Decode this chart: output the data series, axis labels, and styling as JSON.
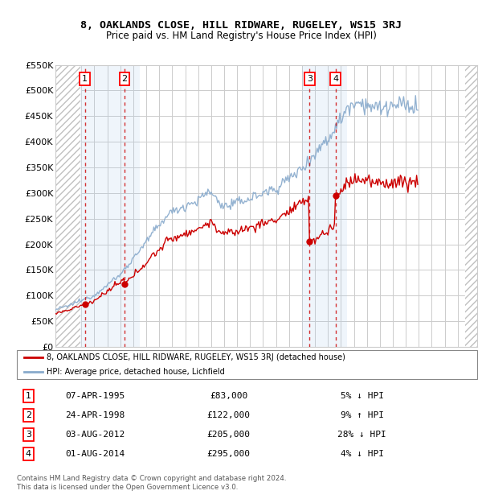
{
  "title": "8, OAKLANDS CLOSE, HILL RIDWARE, RUGELEY, WS15 3RJ",
  "subtitle": "Price paid vs. HM Land Registry's House Price Index (HPI)",
  "legend_line1": "8, OAKLANDS CLOSE, HILL RIDWARE, RUGELEY, WS15 3RJ (detached house)",
  "legend_line2": "HPI: Average price, detached house, Lichfield",
  "footer1": "Contains HM Land Registry data © Crown copyright and database right 2024.",
  "footer2": "This data is licensed under the Open Government Licence v3.0.",
  "sales": [
    {
      "num": 1,
      "date": "07-APR-1995",
      "price": 83000,
      "pct": "5%",
      "dir": "↓",
      "year": 1995.27
    },
    {
      "num": 2,
      "date": "24-APR-1998",
      "price": 122000,
      "pct": "9%",
      "dir": "↑",
      "year": 1998.32
    },
    {
      "num": 3,
      "date": "03-AUG-2012",
      "price": 205000,
      "pct": "28%",
      "dir": "↓",
      "year": 2012.59
    },
    {
      "num": 4,
      "date": "01-AUG-2014",
      "price": 295000,
      "pct": "4%",
      "dir": "↓",
      "year": 2014.59
    }
  ],
  "xmin": 1993.0,
  "xmax": 2025.5,
  "ymin": 0,
  "ymax": 550000,
  "yticks": [
    0,
    50000,
    100000,
    150000,
    200000,
    250000,
    300000,
    350000,
    400000,
    450000,
    500000,
    550000
  ],
  "ytick_labels": [
    "£0",
    "£50K",
    "£100K",
    "£150K",
    "£200K",
    "£250K",
    "£300K",
    "£350K",
    "£400K",
    "£450K",
    "£500K",
    "£550K"
  ],
  "red_color": "#cc0000",
  "blue_color": "#88aacc",
  "hatch_color": "#cccccc",
  "bg_color": "#ffffff",
  "shading_color": "#ddeeff",
  "hpi_base_monthly": [
    72000,
    73000,
    74000,
    75000,
    75500,
    76000,
    76500,
    77000,
    77500,
    78000,
    78500,
    79000,
    80000,
    81000,
    82000,
    83000,
    84000,
    85000,
    86000,
    87000,
    87500,
    88000,
    88500,
    89000,
    90000,
    91000,
    92000,
    93000,
    94000,
    95000,
    96000,
    97000,
    97500,
    98000,
    98500,
    99000,
    100000,
    102000,
    104000,
    106000,
    108000,
    110000,
    112000,
    114000,
    115000,
    116000,
    117000,
    118000,
    120000,
    122000,
    124000,
    126000,
    128000,
    130000,
    132000,
    134000,
    135000,
    136000,
    137000,
    138000,
    140000,
    143000,
    146000,
    149000,
    152000,
    155000,
    158000,
    161000,
    163000,
    165000,
    167000,
    169000,
    172000,
    175000,
    178000,
    181000,
    184000,
    187000,
    190000,
    193000,
    195000,
    197000,
    199000,
    201000,
    204000,
    207000,
    210000,
    213000,
    216000,
    219000,
    222000,
    225000,
    227000,
    229000,
    231000,
    233000,
    236000,
    239000,
    242000,
    245000,
    248000,
    251000,
    254000,
    257000,
    259000,
    260000,
    261000,
    262000,
    263000,
    264000,
    265000,
    266000,
    267000,
    268000,
    269000,
    270000,
    271000,
    272000,
    273000,
    274000,
    275000,
    276000,
    277000,
    278000,
    279000,
    280000,
    281000,
    282000,
    282500,
    283000,
    283500,
    284000,
    285000,
    287000,
    289000,
    291000,
    293000,
    295000,
    297000,
    299000,
    300000,
    300500,
    300800,
    300900,
    300800,
    299000,
    297000,
    294000,
    291000,
    288000,
    285000,
    282000,
    280000,
    279000,
    278000,
    277000,
    276000,
    275000,
    274000,
    274000,
    275000,
    276000,
    277000,
    278000,
    278500,
    279000,
    279500,
    280000,
    280000,
    281000,
    282000,
    283000,
    284000,
    285000,
    286000,
    287000,
    287500,
    288000,
    288300,
    288500,
    289000,
    290000,
    291000,
    292000,
    293000,
    294000,
    295000,
    296000,
    297000,
    297500,
    298000,
    298500,
    299000,
    300000,
    301000,
    302000,
    303000,
    304000,
    305000,
    306000,
    306500,
    307000,
    307300,
    307500,
    308000,
    310000,
    312000,
    314000,
    316000,
    318000,
    320000,
    322000,
    323000,
    324000,
    325000,
    326000,
    327000,
    329000,
    331000,
    333000,
    335000,
    337000,
    339000,
    341000,
    342000,
    343000,
    344000,
    345000,
    347000,
    350000,
    353000,
    356000,
    359000,
    362000,
    365000,
    368000,
    370000,
    371000,
    372000,
    373000,
    375000,
    378000,
    381000,
    384000,
    387000,
    390000,
    393000,
    396000,
    398000,
    399000,
    400000,
    401000,
    403000,
    407000,
    411000,
    415000,
    419000,
    423000,
    427000,
    431000,
    434000,
    436000,
    438000,
    440000,
    443000,
    447000,
    451000,
    455000,
    459000,
    463000,
    467000,
    471000,
    473000,
    474000,
    475000,
    476000,
    477000,
    478000,
    479000,
    479500,
    479000,
    478000,
    477000,
    476000,
    475500,
    475000,
    474500,
    474000,
    473000,
    472000,
    471000,
    470000,
    469000,
    468000,
    467000,
    466000,
    465500,
    465000,
    464800,
    464700,
    464800,
    465000,
    465500,
    466000,
    466500,
    467000,
    467500,
    468000,
    468300,
    468500,
    468700,
    468800,
    468900,
    469000,
    469200,
    469400,
    469600,
    469800,
    470000,
    470200,
    470400,
    470500,
    470400,
    470300,
    470100,
    469800,
    469500,
    469200,
    469000,
    468800,
    468600,
    468400,
    468200,
    468100,
    468000,
    467900
  ]
}
